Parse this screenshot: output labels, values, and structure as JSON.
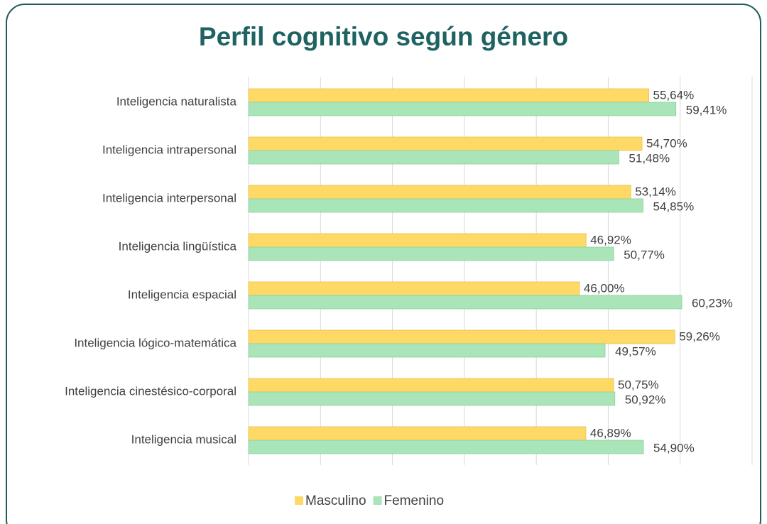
{
  "chart_data": {
    "type": "hbar",
    "title": "Perfil cognitivo según género",
    "categories": [
      "Inteligencia naturalista",
      "Inteligencia intrapersonal",
      "Inteligencia interpersonal",
      "Inteligencia lingüística",
      "Inteligencia espacial",
      "Inteligencia lógico-matemática",
      "Inteligencia cinestésico-corporal",
      "Inteligencia musical"
    ],
    "series": [
      {
        "name": "Masculino",
        "color": "#ffd966",
        "values": [
          55.64,
          54.7,
          53.14,
          46.92,
          46.0,
          59.26,
          50.75,
          46.89
        ],
        "value_labels": [
          "55,64%",
          "54,70%",
          "53,14%",
          "46,92%",
          "46,00%",
          "59,26%",
          "50,75%",
          "46,89%"
        ]
      },
      {
        "name": "Femenino",
        "color": "#a9e5b8",
        "values": [
          59.41,
          51.48,
          54.85,
          50.77,
          60.23,
          49.57,
          50.92,
          54.9
        ],
        "value_labels": [
          "59,41%",
          "51,48%",
          "54,85%",
          "50,77%",
          "60,23%",
          "49,57%",
          "50,92%",
          "54,90%"
        ]
      }
    ],
    "xlim": [
      0,
      70
    ],
    "xticks": [
      0,
      10,
      20,
      30,
      40,
      50,
      60,
      70
    ],
    "grid": true,
    "legend": "bottom"
  }
}
